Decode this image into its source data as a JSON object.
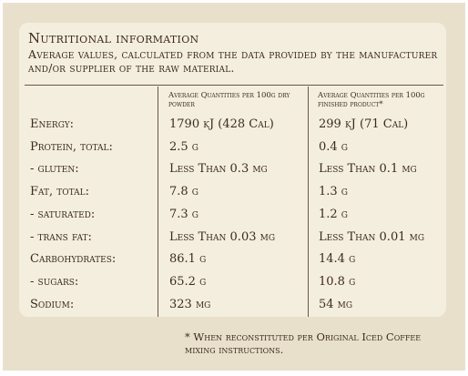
{
  "header": {
    "title": "Nutritional information",
    "subtitle": "Average values, calculated from the data provided by the manufacturer and/or supplier of the raw material."
  },
  "table": {
    "columns": [
      "Average Quantities per 100g dry powder",
      "Average Quantities per 100g finished product*"
    ],
    "rows": [
      [
        "Energy:",
        "1790 kJ (428 Cal)",
        "299 kJ (71 Cal)"
      ],
      [
        "Protein, total:",
        "2.5 g",
        "0.4 g"
      ],
      [
        "- gluten:",
        "Less Than 0.3 mg",
        "Less Than 0.1 mg"
      ],
      [
        "Fat, total:",
        "7.8 g",
        "1.3 g"
      ],
      [
        "- saturated:",
        "7.3 g",
        "1.2 g"
      ],
      [
        "- trans fat:",
        "Less Than 0.03 mg",
        "Less Than 0.01 mg"
      ],
      [
        "Carbohydrates:",
        "86.1 g",
        "14.4 g"
      ],
      [
        "- sugars:",
        "65.2 g",
        "10.8 g"
      ],
      [
        "Sodium:",
        "323 mg",
        "54 mg"
      ]
    ]
  },
  "footnote": "* When reconstituted per Original Iced Coffee mixing instructions."
}
